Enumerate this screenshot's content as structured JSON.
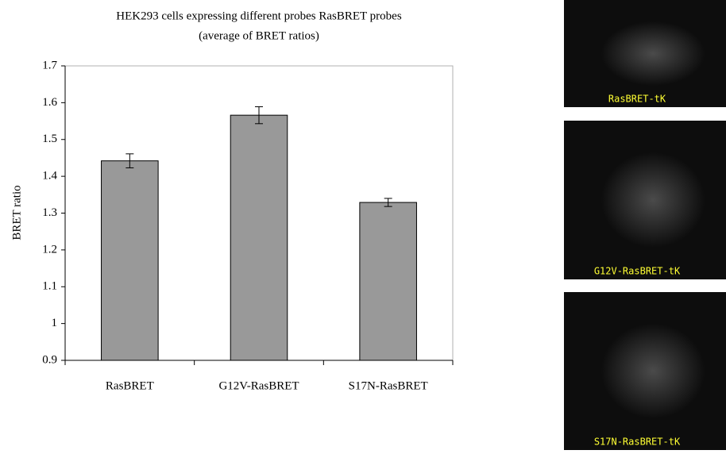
{
  "chart_data": {
    "type": "bar",
    "title": "HEK293 cells expressing different probes RasBRET probes",
    "subtitle": "(average of BRET ratios)",
    "y_label": "BRET ratio",
    "categories": [
      "RasBRET",
      "G12V-RasBRET",
      "S17N-RasBRET"
    ],
    "values": [
      1.442,
      1.566,
      1.329
    ],
    "errors": [
      0.019,
      0.023,
      0.011
    ],
    "color": "#999999",
    "ylim": [
      0.9,
      1.7
    ],
    "yticks": [
      0.9,
      1,
      1.1,
      1.2,
      1.3,
      1.4,
      1.5,
      1.6,
      1.7
    ],
    "grid": false
  },
  "panels": [
    {
      "label": "RasBRET-tK"
    },
    {
      "label": "G12V-RasBRET-tK"
    },
    {
      "label": "S17N-RasBRET-tK"
    }
  ]
}
